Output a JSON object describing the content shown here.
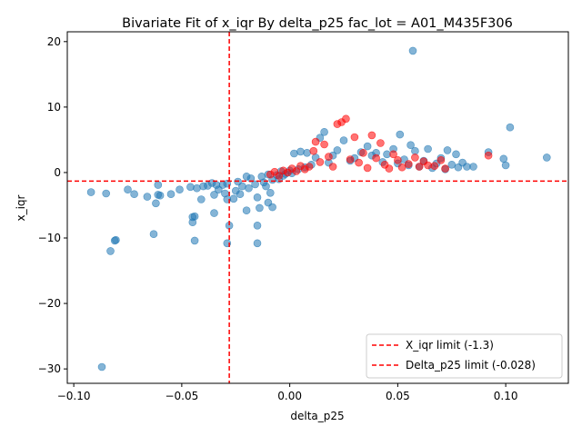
{
  "chart_data": {
    "type": "scatter",
    "title": "Bivariate Fit of x_iqr By delta_p25 fac_lot = A01_M435F306",
    "xlabel": "delta_p25",
    "ylabel": "x_iqr",
    "xlim": [
      -0.103,
      0.129
    ],
    "ylim": [
      -32.2,
      21.5
    ],
    "xticks": [
      -0.1,
      -0.05,
      0.0,
      0.05,
      0.1
    ],
    "xtick_labels": [
      "−0.10",
      "−0.05",
      "0.00",
      "0.05",
      "0.10"
    ],
    "yticks": [
      -30,
      -20,
      -10,
      0,
      10,
      20
    ],
    "ytick_labels": [
      "−30",
      "−20",
      "−10",
      "0",
      "10",
      "20"
    ],
    "grid": false,
    "legend_placement": "lower-right",
    "colors": {
      "series_normal": "#1f77b4",
      "series_outlier": "#ff0000",
      "limit_line": "#ff0000"
    },
    "reference_lines": [
      {
        "orientation": "horizontal",
        "value": -1.3,
        "label": "X_iqr limit (-1.3)"
      },
      {
        "orientation": "vertical",
        "value": -0.028,
        "label": "Delta_p25 limit (-0.028)"
      }
    ],
    "series": [
      {
        "color": "#1f77b4",
        "points": [
          [
            -0.092,
            -3.0
          ],
          [
            -0.085,
            -3.2
          ],
          [
            -0.083,
            -12.0
          ],
          [
            -0.081,
            -10.4
          ],
          [
            -0.0805,
            -10.3
          ],
          [
            -0.087,
            -29.7
          ],
          [
            -0.075,
            -2.6
          ],
          [
            -0.072,
            -3.3
          ],
          [
            -0.066,
            -3.7
          ],
          [
            -0.062,
            -4.7
          ],
          [
            -0.063,
            -9.4
          ],
          [
            -0.061,
            -1.9
          ],
          [
            -0.061,
            -3.4
          ],
          [
            -0.06,
            -3.5
          ],
          [
            -0.055,
            -3.3
          ],
          [
            -0.051,
            -2.6
          ],
          [
            -0.046,
            -2.2
          ],
          [
            -0.045,
            -6.8
          ],
          [
            -0.045,
            -7.6
          ],
          [
            -0.044,
            -6.7
          ],
          [
            -0.044,
            -10.4
          ],
          [
            -0.043,
            -2.4
          ],
          [
            -0.041,
            -4.1
          ],
          [
            -0.04,
            -2.1
          ],
          [
            -0.038,
            -2.0
          ],
          [
            -0.036,
            -1.6
          ],
          [
            -0.035,
            -3.4
          ],
          [
            -0.035,
            -6.2
          ],
          [
            -0.034,
            -1.9
          ],
          [
            -0.033,
            -2.6
          ],
          [
            -0.031,
            -1.9
          ],
          [
            -0.03,
            -3.2
          ],
          [
            -0.029,
            -4.1
          ],
          [
            -0.029,
            -1.7
          ],
          [
            -0.028,
            -8.1
          ],
          [
            -0.029,
            -10.8
          ],
          [
            -0.026,
            -4.0
          ],
          [
            -0.025,
            -2.8
          ],
          [
            -0.024,
            -1.4
          ],
          [
            -0.023,
            -3.3
          ],
          [
            -0.022,
            -2.1
          ],
          [
            -0.02,
            -0.6
          ],
          [
            -0.02,
            -5.8
          ],
          [
            -0.019,
            -2.4
          ],
          [
            -0.018,
            -0.9
          ],
          [
            -0.016,
            -1.8
          ],
          [
            -0.015,
            -3.8
          ],
          [
            -0.015,
            -8.1
          ],
          [
            -0.015,
            -10.8
          ],
          [
            -0.014,
            -5.4
          ],
          [
            -0.013,
            -0.6
          ],
          [
            -0.012,
            -1.5
          ],
          [
            -0.011,
            -2.1
          ],
          [
            -0.01,
            -0.3
          ],
          [
            -0.01,
            -4.6
          ],
          [
            -0.009,
            -3.1
          ],
          [
            -0.008,
            -5.3
          ],
          [
            -0.008,
            -1.1
          ],
          [
            -0.006,
            -0.4
          ],
          [
            -0.005,
            -1.0
          ],
          [
            -0.004,
            0.2
          ],
          [
            -0.003,
            -0.5
          ],
          [
            -0.002,
            -0.2
          ],
          [
            0.0,
            0.3
          ],
          [
            0.001,
            -0.1
          ],
          [
            0.002,
            2.9
          ],
          [
            0.004,
            0.5
          ],
          [
            0.005,
            3.2
          ],
          [
            0.007,
            0.8
          ],
          [
            0.008,
            3.0
          ],
          [
            0.01,
            1.2
          ],
          [
            0.012,
            2.3
          ],
          [
            0.014,
            5.3
          ],
          [
            0.016,
            6.2
          ],
          [
            0.018,
            1.5
          ],
          [
            0.02,
            2.6
          ],
          [
            0.022,
            3.4
          ],
          [
            0.025,
            4.9
          ],
          [
            0.028,
            1.8
          ],
          [
            0.03,
            2.2
          ],
          [
            0.033,
            3.1
          ],
          [
            0.036,
            4.0
          ],
          [
            0.038,
            2.6
          ],
          [
            0.04,
            3.0
          ],
          [
            0.043,
            1.6
          ],
          [
            0.045,
            2.8
          ],
          [
            0.048,
            3.6
          ],
          [
            0.05,
            1.4
          ],
          [
            0.051,
            5.8
          ],
          [
            0.053,
            2.0
          ],
          [
            0.055,
            1.1
          ],
          [
            0.056,
            4.2
          ],
          [
            0.057,
            18.6
          ],
          [
            0.058,
            3.3
          ],
          [
            0.06,
            0.9
          ],
          [
            0.062,
            1.8
          ],
          [
            0.064,
            3.6
          ],
          [
            0.066,
            0.7
          ],
          [
            0.068,
            1.4
          ],
          [
            0.07,
            2.2
          ],
          [
            0.072,
            0.5
          ],
          [
            0.073,
            3.4
          ],
          [
            0.075,
            1.2
          ],
          [
            0.077,
            2.8
          ],
          [
            0.078,
            0.8
          ],
          [
            0.08,
            1.5
          ],
          [
            0.082,
            0.9
          ],
          [
            0.085,
            0.9
          ],
          [
            0.092,
            3.1
          ],
          [
            0.099,
            2.1
          ],
          [
            0.1,
            1.1
          ],
          [
            0.102,
            6.9
          ],
          [
            0.119,
            2.3
          ]
        ]
      },
      {
        "color": "#ff0000",
        "points": [
          [
            -0.009,
            -0.3
          ],
          [
            -0.007,
            0.1
          ],
          [
            -0.005,
            -0.5
          ],
          [
            -0.003,
            0.3
          ],
          [
            -0.001,
            0.0
          ],
          [
            0.001,
            0.6
          ],
          [
            0.003,
            0.2
          ],
          [
            0.005,
            1.0
          ],
          [
            0.007,
            0.5
          ],
          [
            0.009,
            0.9
          ],
          [
            0.011,
            3.3
          ],
          [
            0.012,
            4.7
          ],
          [
            0.014,
            1.6
          ],
          [
            0.016,
            4.3
          ],
          [
            0.018,
            2.4
          ],
          [
            0.02,
            0.9
          ],
          [
            0.022,
            7.4
          ],
          [
            0.024,
            7.7
          ],
          [
            0.026,
            8.2
          ],
          [
            0.028,
            2.0
          ],
          [
            0.03,
            5.4
          ],
          [
            0.032,
            1.5
          ],
          [
            0.034,
            3.0
          ],
          [
            0.036,
            0.7
          ],
          [
            0.038,
            5.7
          ],
          [
            0.04,
            2.2
          ],
          [
            0.042,
            4.5
          ],
          [
            0.044,
            1.2
          ],
          [
            0.046,
            0.6
          ],
          [
            0.048,
            2.8
          ],
          [
            0.05,
            1.9
          ],
          [
            0.052,
            0.8
          ],
          [
            0.055,
            1.3
          ],
          [
            0.058,
            2.3
          ],
          [
            0.06,
            0.9
          ],
          [
            0.062,
            1.7
          ],
          [
            0.064,
            1.1
          ],
          [
            0.067,
            1.0
          ],
          [
            0.07,
            1.9
          ],
          [
            0.072,
            0.6
          ],
          [
            0.092,
            2.6
          ]
        ]
      }
    ]
  }
}
